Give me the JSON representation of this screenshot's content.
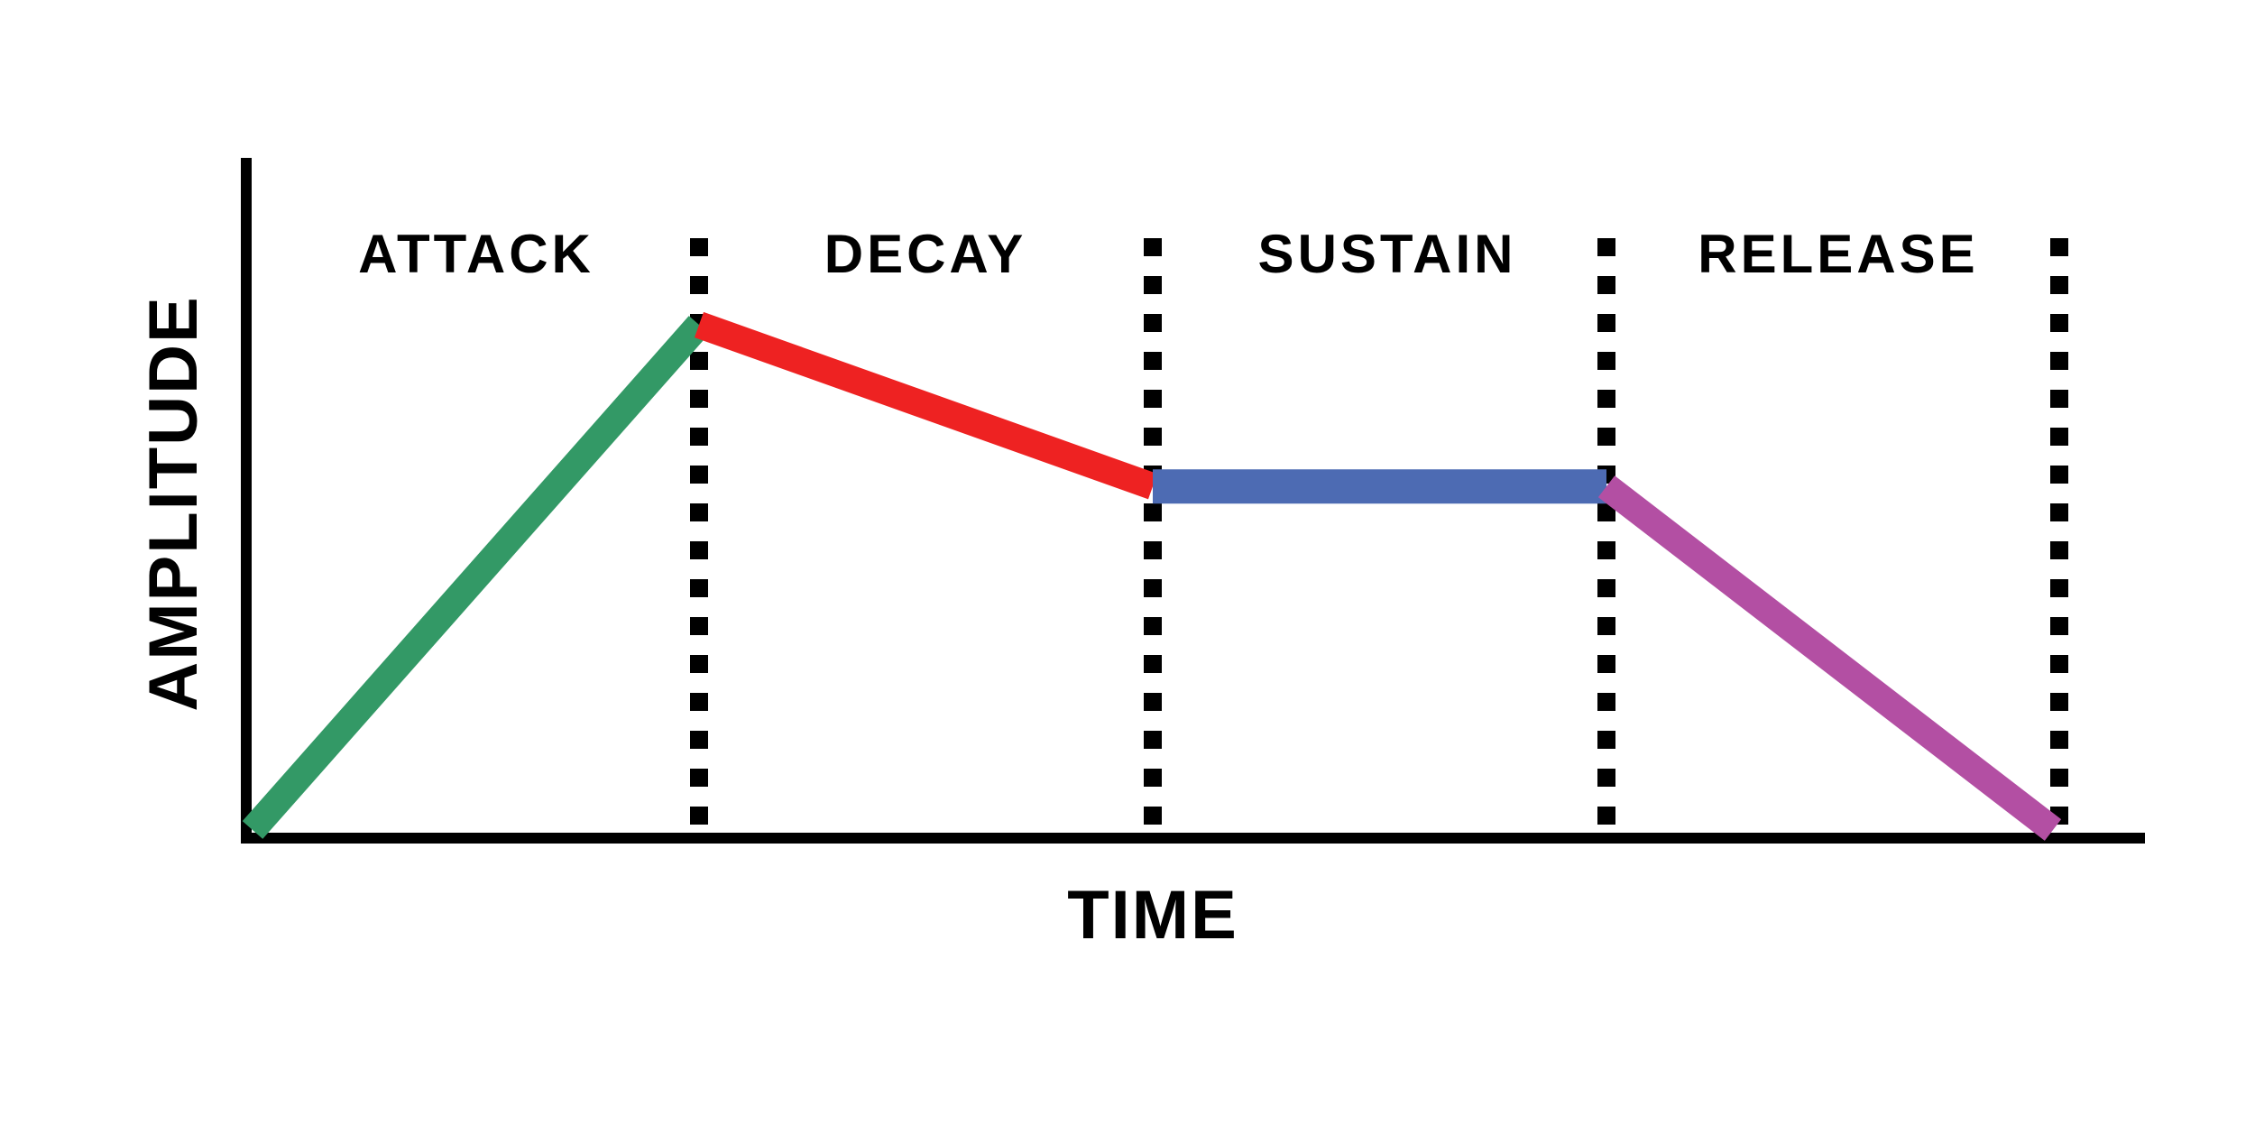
{
  "diagram": {
    "y_axis_label": "AMPLITUDE",
    "x_axis_label": "TIME",
    "phases": [
      {
        "label": "ATTACK",
        "color": "#339966",
        "start_level": 0.0,
        "end_level": 1.0
      },
      {
        "label": "DECAY",
        "color": "#ee2222",
        "start_level": 1.0,
        "end_level": 0.68
      },
      {
        "label": "SUSTAIN",
        "color": "#4d6bb3",
        "start_level": 0.68,
        "end_level": 0.68
      },
      {
        "label": "RELEASE",
        "color": "#b34fa3",
        "start_level": 0.68,
        "end_level": 0.0
      }
    ],
    "divider_style": "dotted"
  }
}
